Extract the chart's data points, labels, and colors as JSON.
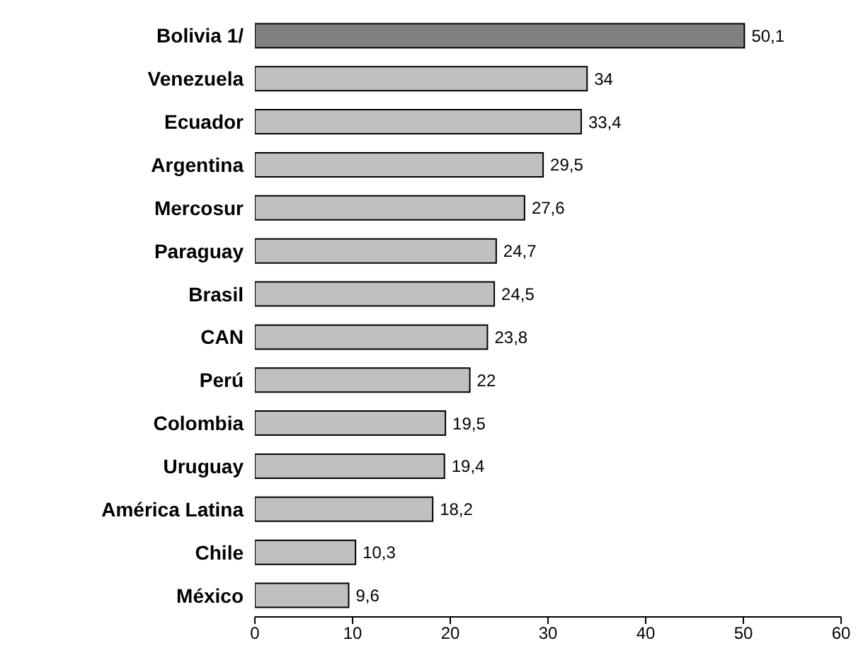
{
  "chart_data": {
    "type": "bar",
    "orientation": "horizontal",
    "categories": [
      "Bolivia 1/",
      "Venezuela",
      "Ecuador",
      "Argentina",
      "Mercosur",
      "Paraguay",
      "Brasil",
      "CAN",
      "Perú",
      "Colombia",
      "Uruguay",
      "América Latina",
      "Chile",
      "México"
    ],
    "values": [
      50.1,
      34,
      33.4,
      29.5,
      27.6,
      24.7,
      24.5,
      23.8,
      22,
      19.5,
      19.4,
      18.2,
      10.3,
      9.6
    ],
    "value_labels": [
      "50,1",
      "34",
      "33,4",
      "29,5",
      "27,6",
      "24,7",
      "24,5",
      "23,8",
      "22",
      "19,5",
      "19,4",
      "18,2",
      "10,3",
      "9,6"
    ],
    "colors": [
      "#808080",
      "#c0c0c0",
      "#c0c0c0",
      "#c0c0c0",
      "#c0c0c0",
      "#c0c0c0",
      "#c0c0c0",
      "#c0c0c0",
      "#c0c0c0",
      "#c0c0c0",
      "#c0c0c0",
      "#c0c0c0",
      "#c0c0c0",
      "#c0c0c0"
    ],
    "xlim": [
      0,
      60
    ],
    "xticks": [
      0,
      10,
      20,
      30,
      40,
      50,
      60
    ],
    "grid": false,
    "legend": false
  }
}
